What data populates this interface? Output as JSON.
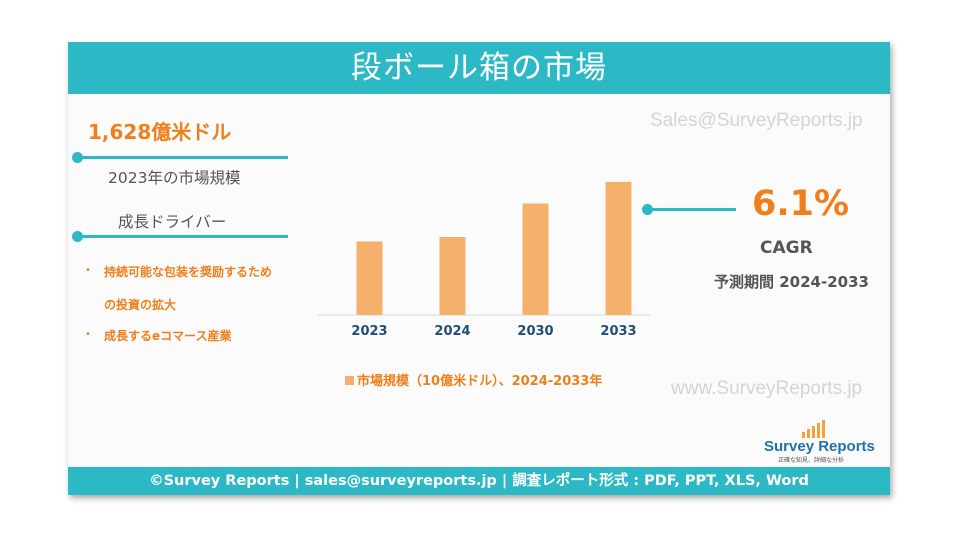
{
  "header": {
    "title": "段ボール箱の市場"
  },
  "watermarks": {
    "top": "Sales@SurveyReports.jp",
    "bottom": "www.SurveyReports.jp"
  },
  "market_size": {
    "value": "1,628億米ドル",
    "label": "2023年の市場規模"
  },
  "drivers": {
    "title": "成長ドライバー",
    "items": [
      "持続可能な包装を奨励するため",
      "の投資の拡大",
      "成長するeコマース産業"
    ],
    "bullet": "•"
  },
  "cagr": {
    "value": "6.1%",
    "label": "CAGR",
    "period": "予測期間 2024-2033"
  },
  "chart_data": {
    "type": "bar",
    "categories": [
      "2023",
      "2024",
      "2030",
      "2033"
    ],
    "series": [
      {
        "name": "市場規模（10億米ドル）、2024-2033年",
        "values": [
          162.8,
          172.7,
          246.8,
          294.7
        ]
      }
    ],
    "ylim": [
      0,
      310
    ],
    "grid": false,
    "legend": "bottom",
    "color": "#f5b06b"
  },
  "logo": {
    "text": "Survey Reports",
    "tagline": "正確な知見、詳細な分析"
  },
  "footer": {
    "text": "©Survey Reports | sales@surveyreports.jp |  調査レポート形式 : PDF, PPT, XLS, Word"
  },
  "colors": {
    "accent": "#2db8c5",
    "highlight": "#ef7f1a",
    "bar": "#f5b06b"
  }
}
